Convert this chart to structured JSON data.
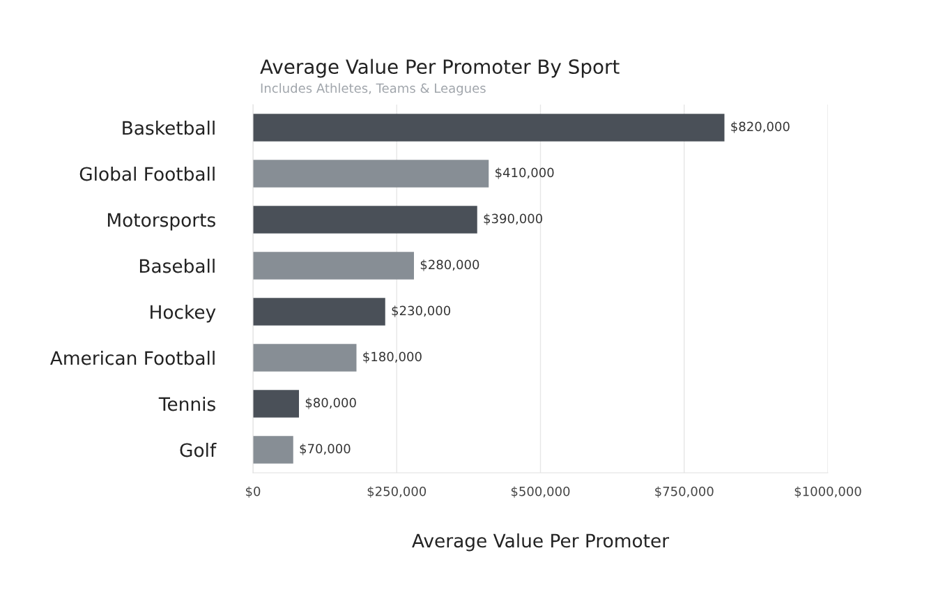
{
  "chart_data": {
    "type": "bar",
    "orientation": "horizontal",
    "title": "Average Value Per Promoter By Sport",
    "subtitle": "Includes Athletes, Teams & Leagues",
    "xlabel": "Average Value Per Promoter",
    "categories": [
      "Basketball",
      "Global Football",
      "Motorsports",
      "Baseball",
      "Hockey",
      "American Football",
      "Tennis",
      "Golf"
    ],
    "values": [
      820000,
      410000,
      390000,
      280000,
      230000,
      180000,
      80000,
      70000
    ],
    "colors": [
      "#4a5058",
      "#878e95",
      "#4a5058",
      "#878e95",
      "#4a5058",
      "#878e95",
      "#4a5058",
      "#878e95"
    ],
    "value_labels": [
      "$820,000",
      "$410,000",
      "$390,000",
      "$280,000",
      "$230,000",
      "$180,000",
      "$80,000",
      "$70,000"
    ],
    "xlim": [
      0,
      1000000
    ],
    "xticks": [
      {
        "value": 0,
        "label": "$0"
      },
      {
        "value": 250000,
        "label": "$250,000"
      },
      {
        "value": 500000,
        "label": "$500,000"
      },
      {
        "value": 750000,
        "label": "$750,000"
      },
      {
        "value": 1000000,
        "label": "$1000,000"
      }
    ],
    "grid": "x",
    "legend": false
  }
}
